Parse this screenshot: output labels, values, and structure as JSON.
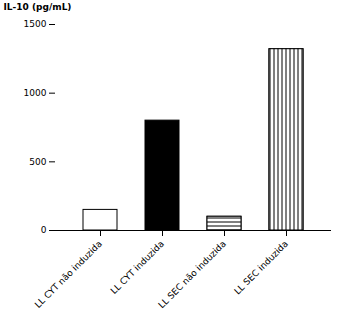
{
  "chart_data": {
    "type": "bar",
    "ylabel": "IL-10 (pg/mL)",
    "categories": [
      "LL CYT não induzida",
      "LL CYT induzida",
      "LL SEC não induzida",
      "LL SEC induzida"
    ],
    "values": [
      150,
      800,
      100,
      1320
    ],
    "colors": [
      "white",
      "black",
      "white",
      "white"
    ],
    "ylim": [
      0,
      1500
    ],
    "yticks": [
      0,
      500,
      1000,
      1500
    ],
    "grid": false
  }
}
